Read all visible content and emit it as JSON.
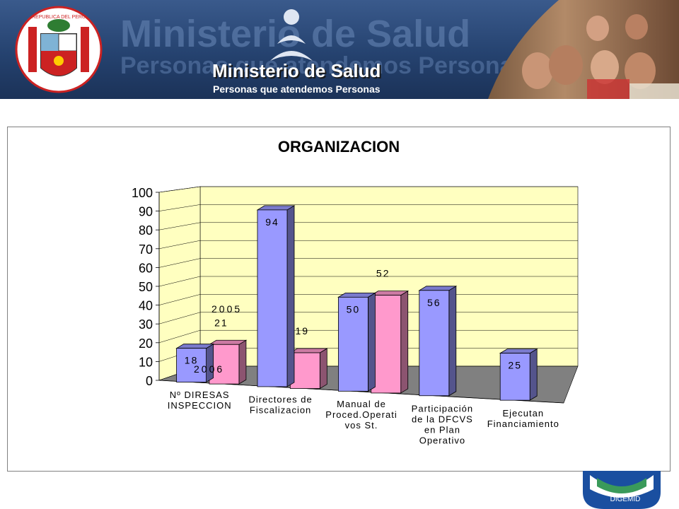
{
  "banner": {
    "background_title": "Ministerio de Salud",
    "background_subtitle": "Personas que atendemos Personas",
    "title": "Ministerio de Salud",
    "subtitle": "Personas que atendemos Personas",
    "seal_text": "REPUBLICA DEL PERU"
  },
  "chart_data": {
    "type": "bar",
    "title": "ORGANIZACION",
    "categories": [
      [
        "Nº DIRESAS",
        "INSPECCION"
      ],
      [
        "Directores de",
        "Fiscalizacion"
      ],
      [
        "Manual de",
        "Proced.Operati",
        "vos St."
      ],
      [
        "Participación",
        "de la DFCVS",
        "en Plan",
        "Operativo"
      ],
      [
        "Ejecutan",
        "Financiamiento"
      ]
    ],
    "series": [
      {
        "name": "2006",
        "color": "#9999ff",
        "values": [
          18,
          94,
          50,
          56,
          25
        ]
      },
      {
        "name": "2005",
        "color": "#ff99cc",
        "values": [
          21,
          19,
          52,
          null,
          null
        ]
      }
    ],
    "ylim": [
      0,
      100
    ],
    "yticks": [
      0,
      10,
      20,
      30,
      40,
      50,
      60,
      70,
      80,
      90,
      100
    ],
    "three_d": true,
    "wall_color": "#ffffc0",
    "floor_color": "#808080"
  },
  "badge": {
    "label": "DIGEMID"
  }
}
